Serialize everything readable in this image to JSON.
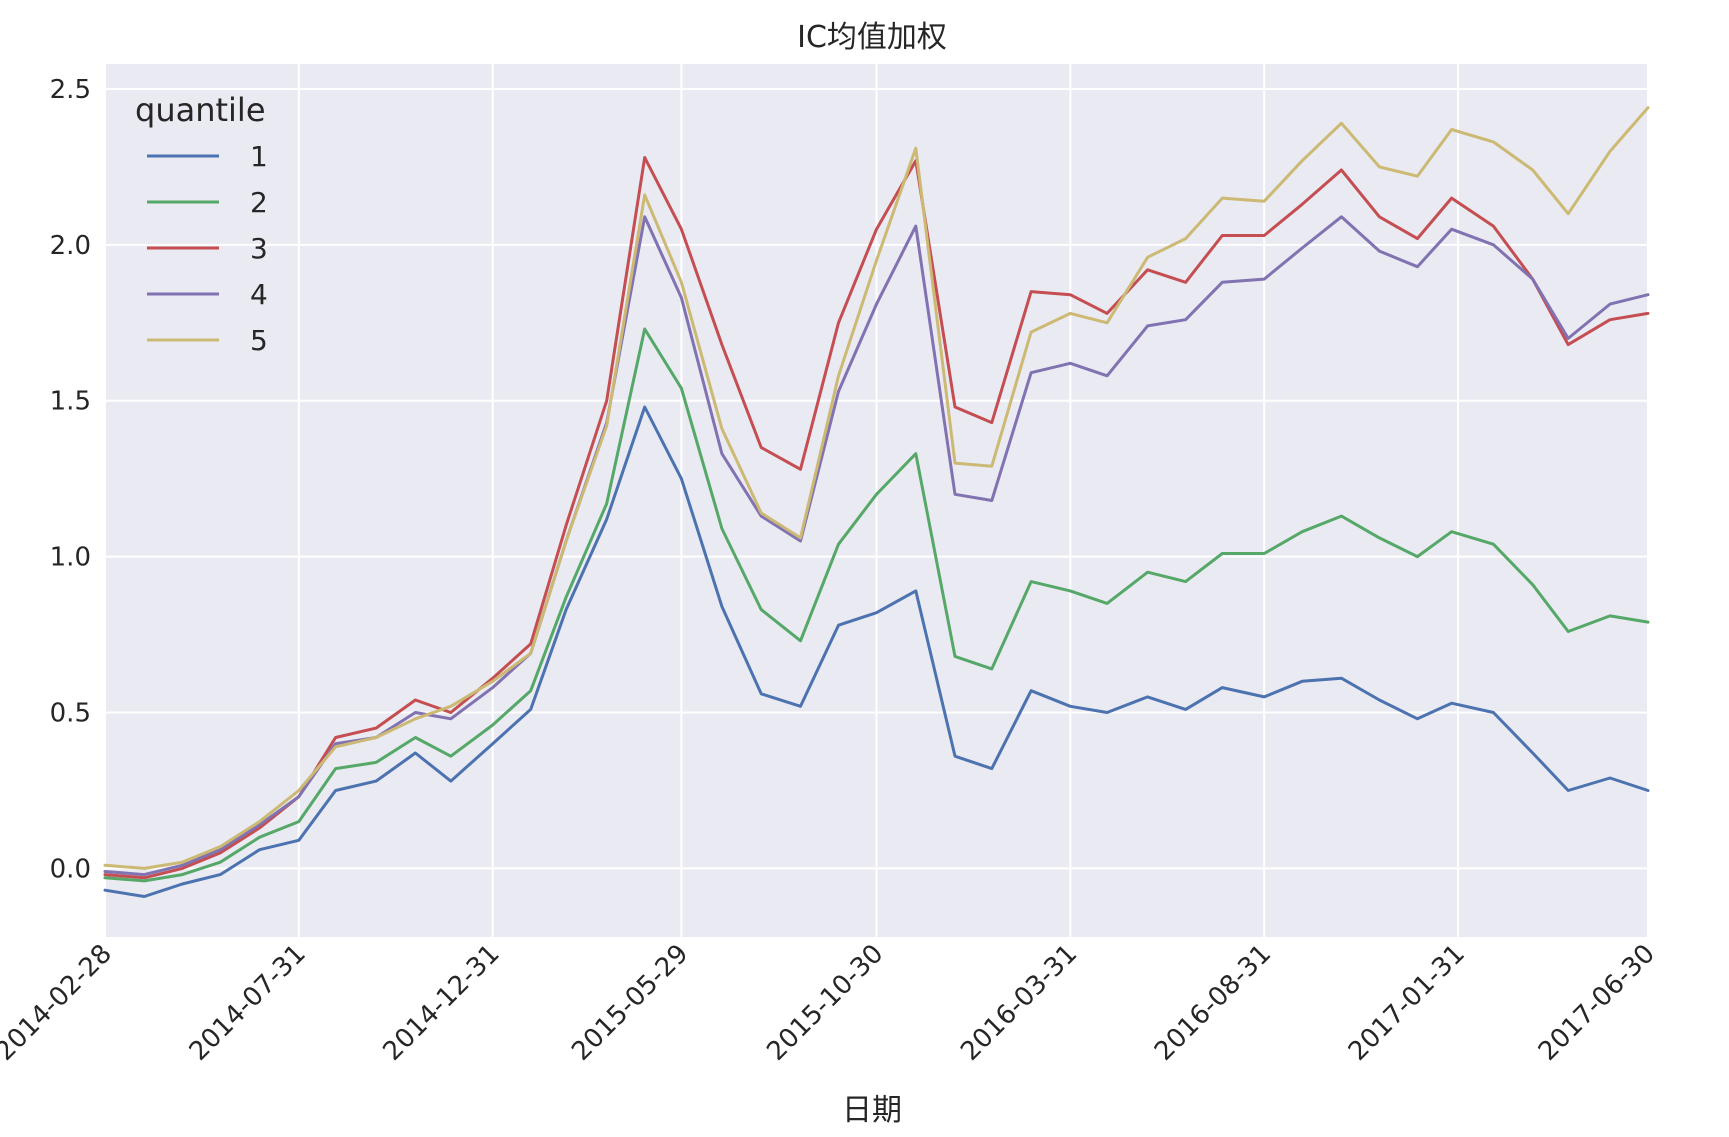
{
  "chart_data": {
    "type": "line",
    "title": "IC均值加权",
    "xlabel": "日期",
    "ylabel": "",
    "xticks": [
      "2014-02-28",
      "2014-07-31",
      "2014-12-31",
      "2015-05-29",
      "2015-10-30",
      "2016-03-31",
      "2016-08-31",
      "2017-01-31",
      "2017-06-30"
    ],
    "yticks": [
      "0.0",
      "0.5",
      "1.0",
      "1.5",
      "2.0",
      "2.5"
    ],
    "ylim": [
      -0.22,
      2.58
    ],
    "grid": true,
    "background": "#eaeaf2",
    "legend": {
      "title": "quantile",
      "position": "upper-left"
    },
    "x": [
      "2014-02-28",
      "2014-03-31",
      "2014-04-30",
      "2014-05-30",
      "2014-06-30",
      "2014-07-31",
      "2014-08-29",
      "2014-09-30",
      "2014-10-31",
      "2014-11-28",
      "2014-12-31",
      "2015-01-30",
      "2015-02-27",
      "2015-03-31",
      "2015-04-30",
      "2015-05-29",
      "2015-06-30",
      "2015-07-31",
      "2015-08-31",
      "2015-09-30",
      "2015-10-30",
      "2015-11-30",
      "2015-12-31",
      "2016-01-29",
      "2016-02-29",
      "2016-03-31",
      "2016-04-29",
      "2016-05-31",
      "2016-06-30",
      "2016-07-29",
      "2016-08-31",
      "2016-09-30",
      "2016-10-31",
      "2016-11-30",
      "2016-12-30",
      "2017-01-26",
      "2017-02-28",
      "2017-03-31",
      "2017-04-28",
      "2017-05-31",
      "2017-06-30"
    ],
    "series": [
      {
        "name": "1",
        "color": "#4c72b0",
        "values": [
          -0.07,
          -0.09,
          -0.05,
          -0.02,
          0.06,
          0.09,
          0.25,
          0.28,
          0.37,
          0.28,
          0.4,
          0.51,
          0.83,
          1.12,
          1.48,
          1.25,
          0.84,
          0.56,
          0.52,
          0.78,
          0.82,
          0.89,
          0.36,
          0.32,
          0.57,
          0.52,
          0.5,
          0.55,
          0.51,
          0.58,
          0.55,
          0.6,
          0.61,
          0.54,
          0.48,
          0.53,
          0.5,
          0.37,
          0.25,
          0.29,
          0.25
        ]
      },
      {
        "name": "2",
        "color": "#55a868",
        "values": [
          -0.03,
          -0.04,
          -0.02,
          0.02,
          0.1,
          0.15,
          0.32,
          0.34,
          0.42,
          0.36,
          0.46,
          0.57,
          0.87,
          1.17,
          1.73,
          1.54,
          1.09,
          0.83,
          0.73,
          1.04,
          1.2,
          1.33,
          0.68,
          0.64,
          0.92,
          0.89,
          0.85,
          0.95,
          0.92,
          1.01,
          1.01,
          1.08,
          1.13,
          1.06,
          1.0,
          1.08,
          1.04,
          0.91,
          0.76,
          0.81,
          0.79
        ]
      },
      {
        "name": "3",
        "color": "#c44e52",
        "values": [
          -0.02,
          -0.03,
          0.0,
          0.05,
          0.13,
          0.23,
          0.42,
          0.45,
          0.54,
          0.5,
          0.61,
          0.72,
          1.1,
          1.5,
          2.28,
          2.05,
          1.68,
          1.35,
          1.28,
          1.75,
          2.05,
          2.27,
          1.48,
          1.43,
          1.85,
          1.84,
          1.78,
          1.92,
          1.88,
          2.03,
          2.03,
          2.13,
          2.24,
          2.09,
          2.02,
          2.15,
          2.06,
          1.89,
          1.68,
          1.76,
          1.78
        ]
      },
      {
        "name": "4",
        "color": "#8172b2",
        "values": [
          -0.01,
          -0.02,
          0.01,
          0.06,
          0.14,
          0.23,
          0.4,
          0.42,
          0.5,
          0.48,
          0.58,
          0.69,
          1.05,
          1.43,
          2.09,
          1.83,
          1.33,
          1.13,
          1.05,
          1.53,
          1.81,
          2.06,
          1.2,
          1.18,
          1.59,
          1.62,
          1.58,
          1.74,
          1.76,
          1.88,
          1.89,
          1.99,
          2.09,
          1.98,
          1.93,
          2.05,
          2.0,
          1.89,
          1.7,
          1.81,
          1.84
        ]
      },
      {
        "name": "5",
        "color": "#ccb974",
        "values": [
          0.01,
          0.0,
          0.02,
          0.07,
          0.15,
          0.25,
          0.39,
          0.42,
          0.48,
          0.52,
          0.6,
          0.69,
          1.05,
          1.42,
          2.16,
          1.88,
          1.41,
          1.14,
          1.06,
          1.58,
          1.95,
          2.31,
          1.3,
          1.29,
          1.72,
          1.78,
          1.75,
          1.96,
          2.02,
          2.15,
          2.14,
          2.27,
          2.39,
          2.25,
          2.22,
          2.37,
          2.33,
          2.24,
          2.1,
          2.3,
          2.44
        ]
      }
    ]
  }
}
